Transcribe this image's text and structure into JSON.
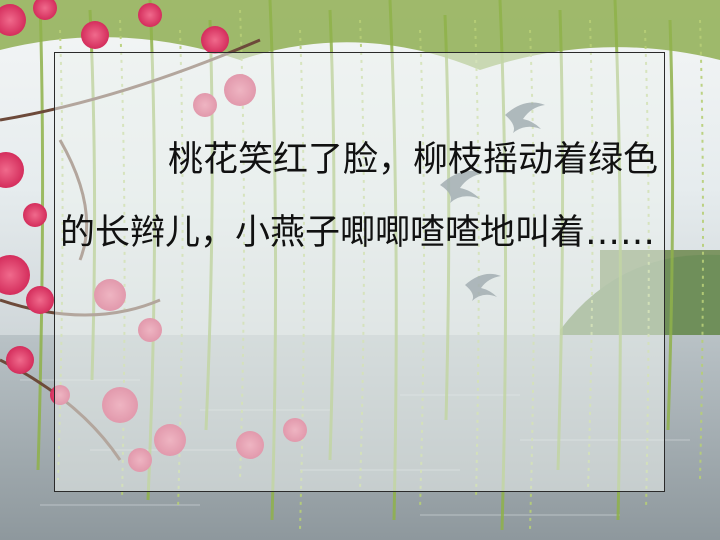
{
  "slide": {
    "poem_text": "桃花笑红了脸，柳枝摇动着绿色的长辫儿，小燕子唧唧喳喳地叫着……"
  },
  "background": {
    "description_colors": {
      "sky": "#e9eef0",
      "water": "#a7b1b6",
      "willow": "#9fbf58",
      "blossom": "#e0456e",
      "far_hills": "#6f8f5a"
    }
  }
}
